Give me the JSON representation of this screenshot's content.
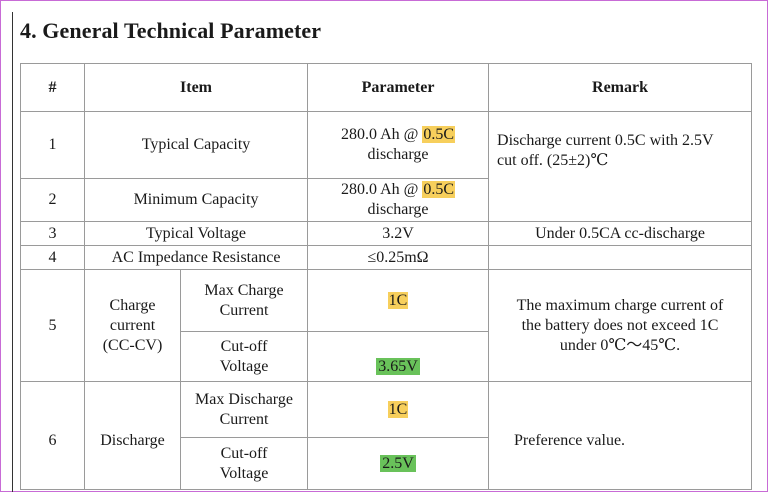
{
  "title": "4. General Technical Parameter",
  "table": {
    "headers": {
      "num": "#",
      "item": "Item",
      "parameter": "Parameter",
      "remark": "Remark"
    },
    "row1": {
      "num": "1",
      "item": "Typical Capacity",
      "param_prefix": "280.0 Ah @ ",
      "param_highlight": "0.5C",
      "param_suffix": "discharge"
    },
    "row2": {
      "num": "2",
      "item": "Minimum Capacity",
      "param_prefix": "280.0 Ah @ ",
      "param_highlight": "0.5C",
      "param_suffix": "discharge"
    },
    "row12_remark_line1": "Discharge current 0.5C with 2.5V",
    "row12_remark_line2": "cut off. (25±2)℃",
    "row3": {
      "num": "3",
      "item": "Typical Voltage",
      "param": "3.2V",
      "remark": "Under 0.5CA cc-discharge"
    },
    "row4": {
      "num": "4",
      "item": "AC Impedance Resistance",
      "param": "≤0.25mΩ",
      "remark": ""
    },
    "row5": {
      "num": "5",
      "group_line1": "Charge",
      "group_line2": "current",
      "group_line3": "(CC-CV)",
      "sub1_line1": "Max Charge",
      "sub1_line2": "Current",
      "sub1_param": "1C",
      "sub2_line1": "Cut-off",
      "sub2_line2": "Voltage",
      "sub2_param": "3.65V",
      "remark_line1": "The maximum charge current of",
      "remark_line2": "the battery does not exceed 1C",
      "remark_line3": "under 0℃～45℃."
    },
    "row6": {
      "num": "6",
      "group": "Discharge",
      "sub1_line1": "Max Discharge",
      "sub1_line2": "Current",
      "sub1_param": "1C",
      "sub2_line1": "Cut-off",
      "sub2_line2": "Voltage",
      "sub2_param": "2.5V",
      "remark": "Preference value."
    }
  },
  "colors": {
    "highlight_yellow": "#f7cf5c",
    "highlight_green": "#69c25a",
    "frame": "#c86bd6"
  }
}
